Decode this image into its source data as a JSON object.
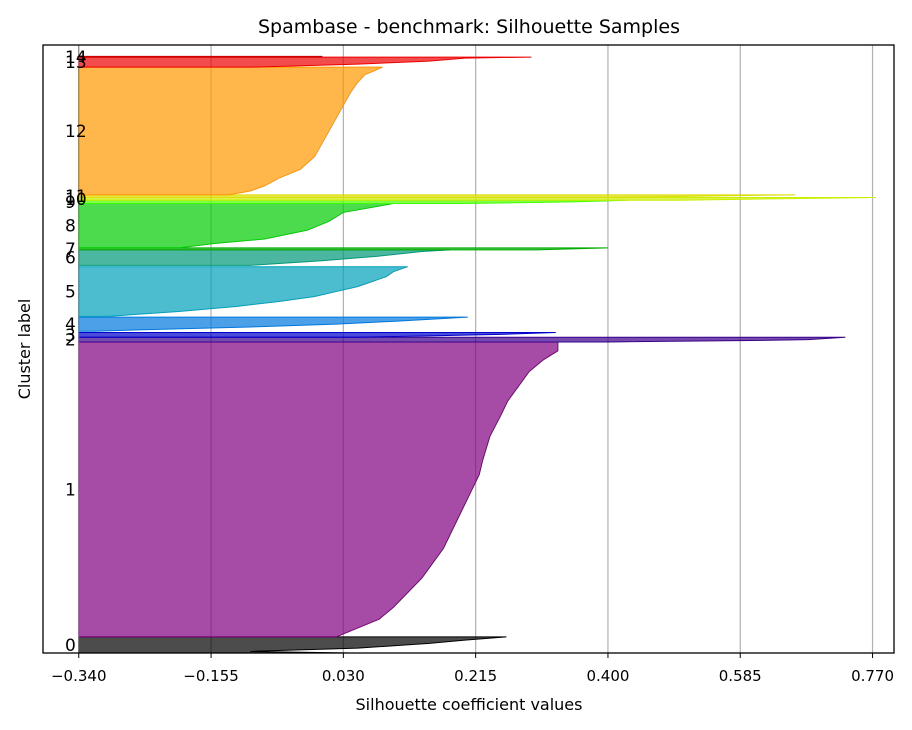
{
  "chart_data": {
    "type": "area",
    "title": "Spambase - benchmark: Silhouette Samples",
    "xlabel": "Silhouette coefficient values",
    "ylabel": "Cluster label",
    "xlim": [
      -0.39,
      0.8
    ],
    "xticks": [
      -0.34,
      -0.155,
      0.03,
      0.215,
      0.4,
      0.585,
      0.77
    ],
    "xtick_labels": [
      "−0.340",
      "−0.155",
      "0.030",
      "0.215",
      "0.400",
      "0.585",
      "0.770"
    ],
    "ylim": [
      0,
      905
    ],
    "grid": "x",
    "baseline": -0.34,
    "clusters": [
      {
        "label": "0",
        "color": "#000000",
        "y_range": [
          0,
          24
        ],
        "profile": [
          [
            0,
            0.04
          ],
          [
            0.1,
            -0.1
          ],
          [
            0.3,
            0.05
          ],
          [
            0.6,
            0.15
          ],
          [
            0.8,
            0.2
          ],
          [
            1,
            0.258
          ]
        ]
      },
      {
        "label": "1",
        "color": "#800080",
        "y_range": [
          24,
          463
        ],
        "profile": [
          [
            0,
            0.02
          ],
          [
            0.03,
            0.05
          ],
          [
            0.06,
            0.08
          ],
          [
            0.1,
            0.1
          ],
          [
            0.15,
            0.12
          ],
          [
            0.2,
            0.14
          ],
          [
            0.3,
            0.17
          ],
          [
            0.4,
            0.19
          ],
          [
            0.5,
            0.21
          ],
          [
            0.55,
            0.22
          ],
          [
            0.6,
            0.225
          ],
          [
            0.68,
            0.235
          ],
          [
            0.75,
            0.25
          ],
          [
            0.8,
            0.26
          ],
          [
            0.85,
            0.275
          ],
          [
            0.9,
            0.29
          ],
          [
            0.94,
            0.31
          ],
          [
            0.97,
            0.33
          ],
          [
            1,
            0.33
          ]
        ]
      },
      {
        "label": "2",
        "color": "#3a008c",
        "y_range": [
          463,
          470
        ],
        "profile": [
          [
            0,
            0.4
          ],
          [
            0.3,
            0.6
          ],
          [
            0.5,
            0.68
          ],
          [
            1,
            0.732
          ]
        ]
      },
      {
        "label": "3",
        "color": "#0000cc",
        "y_range": [
          470,
          477
        ],
        "profile": [
          [
            0,
            0.05
          ],
          [
            0.3,
            0.15
          ],
          [
            0.6,
            0.25
          ],
          [
            1,
            0.327
          ]
        ]
      },
      {
        "label": "4",
        "color": "#0077dd",
        "y_range": [
          479,
          500
        ],
        "profile": [
          [
            0,
            -0.32
          ],
          [
            0.1,
            -0.25
          ],
          [
            0.3,
            -0.1
          ],
          [
            0.5,
            0.02
          ],
          [
            0.7,
            0.1
          ],
          [
            1,
            0.204
          ]
        ]
      },
      {
        "label": "5",
        "color": "#00a0bb",
        "y_range": [
          501,
          575
        ],
        "profile": [
          [
            0,
            -0.3
          ],
          [
            0.1,
            -0.2
          ],
          [
            0.2,
            -0.12
          ],
          [
            0.3,
            -0.06
          ],
          [
            0.4,
            -0.01
          ],
          [
            0.5,
            0.02
          ],
          [
            0.6,
            0.05
          ],
          [
            0.7,
            0.07
          ],
          [
            0.8,
            0.09
          ],
          [
            0.9,
            0.1
          ],
          [
            1,
            0.12
          ]
        ]
      },
      {
        "label": "6",
        "color": "#009977",
        "y_range": [
          577,
          600
        ],
        "profile": [
          [
            0,
            -0.1
          ],
          [
            0.3,
            0.0
          ],
          [
            0.6,
            0.08
          ],
          [
            0.9,
            0.14
          ],
          [
            1,
            0.18
          ]
        ]
      },
      {
        "label": "7",
        "color": "#00aa00",
        "y_range": [
          600,
          603
        ],
        "profile": [
          [
            0,
            0.3
          ],
          [
            1,
            0.4
          ]
        ]
      },
      {
        "label": "8",
        "color": "#00cc00",
        "y_range": [
          603,
          669
        ],
        "profile": [
          [
            0,
            -0.2
          ],
          [
            0.1,
            -0.15
          ],
          [
            0.2,
            -0.08
          ],
          [
            0.4,
            -0.02
          ],
          [
            0.6,
            0.01
          ],
          [
            0.8,
            0.03
          ],
          [
            1,
            0.1
          ]
        ]
      },
      {
        "label": "9",
        "color": "#44ff00",
        "y_range": [
          669,
          674
        ],
        "profile": [
          [
            0,
            0.2
          ],
          [
            0.5,
            0.35
          ],
          [
            1,
            0.428
          ]
        ]
      },
      {
        "label": "10",
        "color": "#ccee00",
        "y_range": [
          674,
          678
        ],
        "profile": [
          [
            0,
            0.5
          ],
          [
            1,
            0.775
          ]
        ]
      },
      {
        "label": "11",
        "color": "#dddd00",
        "y_range": [
          678,
          682
        ],
        "profile": [
          [
            0,
            0.4
          ],
          [
            1,
            0.662
          ]
        ]
      },
      {
        "label": "12",
        "color": "#ff9900",
        "y_range": [
          682,
          872
        ],
        "profile": [
          [
            0,
            -0.13
          ],
          [
            0.03,
            -0.1
          ],
          [
            0.07,
            -0.08
          ],
          [
            0.13,
            -0.06
          ],
          [
            0.2,
            -0.03
          ],
          [
            0.3,
            -0.01
          ],
          [
            0.4,
            0.0
          ],
          [
            0.5,
            0.01
          ],
          [
            0.6,
            0.02
          ],
          [
            0.7,
            0.03
          ],
          [
            0.8,
            0.04
          ],
          [
            0.88,
            0.05
          ],
          [
            0.94,
            0.06
          ],
          [
            1,
            0.085
          ]
        ]
      },
      {
        "label": "13",
        "color": "#ee0000",
        "y_range": [
          872,
          887
        ],
        "profile": [
          [
            0,
            -0.1
          ],
          [
            0.3,
            0.05
          ],
          [
            0.6,
            0.15
          ],
          [
            0.9,
            0.2
          ],
          [
            1,
            0.293
          ]
        ]
      },
      {
        "label": "14",
        "color": "#cc0000",
        "y_range": [
          887,
          888
        ],
        "profile": [
          [
            0,
            0.0
          ],
          [
            1,
            0.0
          ]
        ]
      }
    ]
  }
}
